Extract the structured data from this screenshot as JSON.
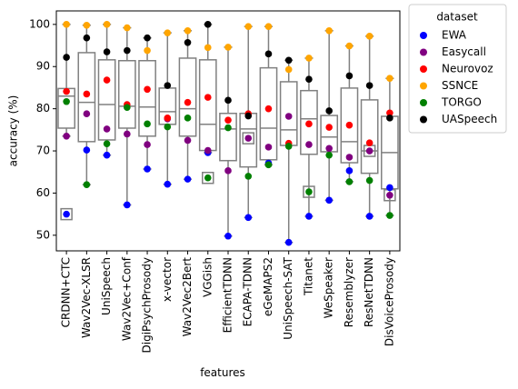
{
  "chart_data": {
    "type": "box",
    "xlabel": "features",
    "ylabel": "accuracy (%)",
    "categories": [
      "CRDNN+CTC",
      "Wav2Vec-XLSR",
      "UniSpeech",
      "Wav2Vec+Conf",
      "DigiPsychProsody",
      "x-vector",
      "Wav2Vec2Bert",
      "VGGish",
      "EfficientTDNN",
      "ECAPA-TDNN",
      "eGeMAPS2",
      "UniSpeech-SAT",
      "Titanet",
      "WeSpeaker",
      "Resemblyzer",
      "ResNetTDNN",
      "DisVoiceProsody"
    ],
    "ylim": [
      46.3,
      103.2
    ],
    "yticks": [
      50,
      60,
      70,
      80,
      90,
      100
    ],
    "legend_title": "dataset",
    "legend": "outside-upper-right",
    "box_color": "#808080",
    "boxes": [
      {
        "whislo": 73.5,
        "q1": 75.4,
        "median": 83,
        "q3": 84.8,
        "whishi": 100,
        "fliers": [
          55
        ]
      },
      {
        "whislo": 62,
        "q1": 72.2,
        "median": 81.5,
        "q3": 93.3,
        "whishi": 99.8,
        "fliers": []
      },
      {
        "whislo": 69,
        "q1": 72.6,
        "median": 81,
        "q3": 91.6,
        "whishi": 100,
        "fliers": []
      },
      {
        "whislo": 57.2,
        "q1": 75.4,
        "median": 80.6,
        "q3": 91.4,
        "whishi": 99.2,
        "fliers": []
      },
      {
        "whislo": 65.7,
        "q1": 73.5,
        "median": 80.4,
        "q3": 91.4,
        "whishi": 96.8,
        "fliers": []
      },
      {
        "whislo": 62.1,
        "q1": 76.3,
        "median": 79.3,
        "q3": 84.9,
        "whishi": 98,
        "fliers": []
      },
      {
        "whislo": 63.3,
        "q1": 73.5,
        "median": 80,
        "q3": 92,
        "whishi": 98.5,
        "fliers": []
      },
      {
        "whislo": 69.6,
        "q1": 70.1,
        "median": 76.3,
        "q3": 91.6,
        "whishi": 100,
        "fliers": [
          63.6
        ]
      },
      {
        "whislo": 49.8,
        "q1": 67.7,
        "median": 75.2,
        "q3": 78.9,
        "whishi": 94.6,
        "fliers": []
      },
      {
        "whislo": 54.2,
        "q1": 66.2,
        "median": 75.2,
        "q3": 78.9,
        "whishi": 99.5,
        "fliers": [
          73
        ]
      },
      {
        "whislo": 66.7,
        "q1": 67.9,
        "median": 75.4,
        "q3": 89.7,
        "whishi": 99.5,
        "fliers": []
      },
      {
        "whislo": 48.3,
        "q1": 71.3,
        "median": 75,
        "q3": 86.4,
        "whishi": 91.5,
        "fliers": []
      },
      {
        "whislo": 54.5,
        "q1": 69.2,
        "median": 77.6,
        "q3": 84.3,
        "whishi": 92,
        "fliers": [
          60.3
        ]
      },
      {
        "whislo": 58.3,
        "q1": 69.8,
        "median": 73.3,
        "q3": 78.4,
        "whishi": 98.5,
        "fliers": []
      },
      {
        "whislo": 62.7,
        "q1": 67.2,
        "median": 72.2,
        "q3": 84.9,
        "whishi": 94.9,
        "fliers": []
      },
      {
        "whislo": 54.5,
        "q1": 64.7,
        "median": 70,
        "q3": 82.1,
        "whishi": 97.2,
        "fliers": [
          70
        ]
      },
      {
        "whislo": 54.7,
        "q1": 61,
        "median": 69.6,
        "q3": 78.2,
        "whishi": 87.2,
        "fliers": [
          59.5
        ]
      }
    ],
    "series": [
      {
        "name": "EWA",
        "color": "#0000ff",
        "values": [
          55,
          70.2,
          69,
          57.2,
          65.7,
          62.1,
          63.3,
          69.6,
          49.8,
          54.2,
          67.1,
          48.3,
          54.5,
          58.3,
          65.3,
          54.5,
          61.3
        ]
      },
      {
        "name": "Easycall",
        "color": "#800080",
        "values": [
          73.5,
          78.8,
          75.2,
          74,
          71.5,
          77.6,
          72.5,
          70.1,
          65.3,
          73,
          70.9,
          78.2,
          71.5,
          70.6,
          68.5,
          70,
          59.5
        ]
      },
      {
        "name": "Neurovoz",
        "color": "#ff0000",
        "values": [
          84.1,
          83.5,
          86.8,
          81,
          84.6,
          77.8,
          81.5,
          82.7,
          77.3,
          78.8,
          80,
          71.8,
          76.4,
          75.6,
          76.1,
          71.9,
          79
        ]
      },
      {
        "name": "SSNCE",
        "color": "#ffa500",
        "values": [
          100,
          99.8,
          100,
          99.2,
          93.8,
          98,
          98.5,
          94.5,
          94.6,
          99.5,
          99.5,
          89.3,
          92,
          98.5,
          94.9,
          97.2,
          87.2
        ]
      },
      {
        "name": "TORGO",
        "color": "#008000",
        "values": [
          81.7,
          62,
          71.7,
          80.3,
          76.4,
          75.7,
          77.8,
          63.6,
          75.5,
          64,
          66.7,
          71.1,
          60.3,
          69,
          62.7,
          63,
          54.7
        ]
      },
      {
        "name": "UASpeech",
        "color": "#000000",
        "values": [
          92.2,
          96.8,
          93.5,
          93.8,
          96.8,
          85.5,
          95.7,
          100,
          82,
          78.3,
          93,
          91.5,
          87,
          79.5,
          87.8,
          85.5,
          77.8
        ]
      }
    ]
  }
}
